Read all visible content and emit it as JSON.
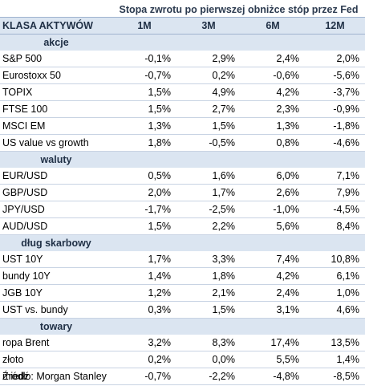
{
  "title": "Stopa zwrotu po pierwszej obniżce stóp przez Fed",
  "columns": [
    "KLASA AKTYWÓW",
    "1M",
    "3M",
    "6M",
    "12M"
  ],
  "groups": [
    {
      "name": "akcje",
      "rows": [
        {
          "label": "S&P 500",
          "values": [
            "-0,1%",
            "2,9%",
            "2,4%",
            "2,0%"
          ]
        },
        {
          "label": "Eurostoxx 50",
          "values": [
            "-0,7%",
            "0,2%",
            "-0,6%",
            "-5,6%"
          ]
        },
        {
          "label": "TOPIX",
          "values": [
            "1,5%",
            "4,9%",
            "4,2%",
            "-3,7%"
          ]
        },
        {
          "label": "FTSE 100",
          "values": [
            "1,5%",
            "2,7%",
            "2,3%",
            "-0,9%"
          ]
        },
        {
          "label": "MSCI EM",
          "values": [
            "1,3%",
            "1,5%",
            "1,3%",
            "-1,8%"
          ]
        },
        {
          "label": "US value vs growth",
          "values": [
            "1,8%",
            "-0,5%",
            "0,8%",
            "-4,6%"
          ]
        }
      ]
    },
    {
      "name": "waluty",
      "rows": [
        {
          "label": "EUR/USD",
          "values": [
            "0,5%",
            "1,6%",
            "6,0%",
            "7,1%"
          ]
        },
        {
          "label": "GBP/USD",
          "values": [
            "2,0%",
            "1,7%",
            "2,6%",
            "7,9%"
          ]
        },
        {
          "label": "JPY/USD",
          "values": [
            "-1,7%",
            "-2,5%",
            "-1,0%",
            "-4,5%"
          ]
        },
        {
          "label": "AUD/USD",
          "values": [
            "1,5%",
            "2,2%",
            "5,6%",
            "8,4%"
          ]
        }
      ]
    },
    {
      "name": "dług skarbowy",
      "rows": [
        {
          "label": "UST 10Y",
          "values": [
            "1,7%",
            "3,3%",
            "7,4%",
            "10,8%"
          ]
        },
        {
          "label": "bundy 10Y",
          "values": [
            "1,4%",
            "1,8%",
            "4,2%",
            "6,1%"
          ]
        },
        {
          "label": "JGB 10Y",
          "values": [
            "1,2%",
            "2,1%",
            "2,4%",
            "1,0%"
          ]
        },
        {
          "label": "UST vs. bundy",
          "values": [
            "0,3%",
            "1,5%",
            "3,1%",
            "4,6%"
          ]
        }
      ]
    },
    {
      "name": "towary",
      "rows": [
        {
          "label": "ropa Brent",
          "values": [
            "3,2%",
            "8,3%",
            "17,4%",
            "13,5%"
          ]
        },
        {
          "label": "złoto",
          "values": [
            "0,2%",
            "0,0%",
            "5,5%",
            "1,4%"
          ]
        },
        {
          "label": "miedź",
          "values": [
            "-0,7%",
            "-2,2%",
            "-4,8%",
            "-8,5%"
          ]
        }
      ]
    }
  ],
  "source": "Źródło: Morgan Stanley",
  "colors": {
    "header_bg": "#dbe5f1",
    "header_text": "#1f2f45",
    "row_border": "#c8d3e3"
  }
}
